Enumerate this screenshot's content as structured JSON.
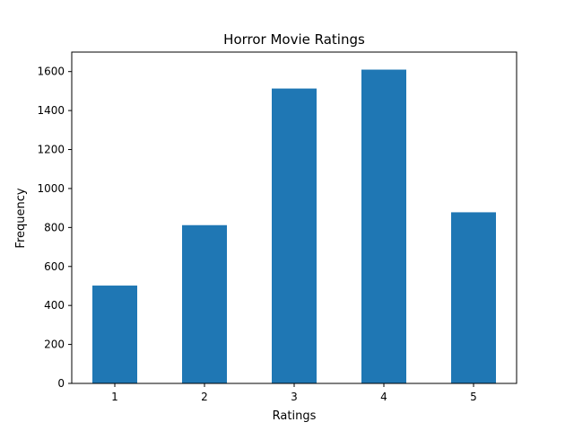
{
  "chart_data": {
    "type": "bar",
    "title": "Horror Movie Ratings",
    "xlabel": "Ratings",
    "ylabel": "Frequency",
    "categories": [
      "1",
      "2",
      "3",
      "4",
      "5"
    ],
    "values": [
      502,
      812,
      1513,
      1610,
      878
    ],
    "ylim": [
      0,
      1700
    ],
    "yticks": [
      0,
      200,
      400,
      600,
      800,
      1000,
      1200,
      1400,
      1600
    ],
    "bar_color": "#1f77b4",
    "grid": false,
    "legend": "none"
  }
}
